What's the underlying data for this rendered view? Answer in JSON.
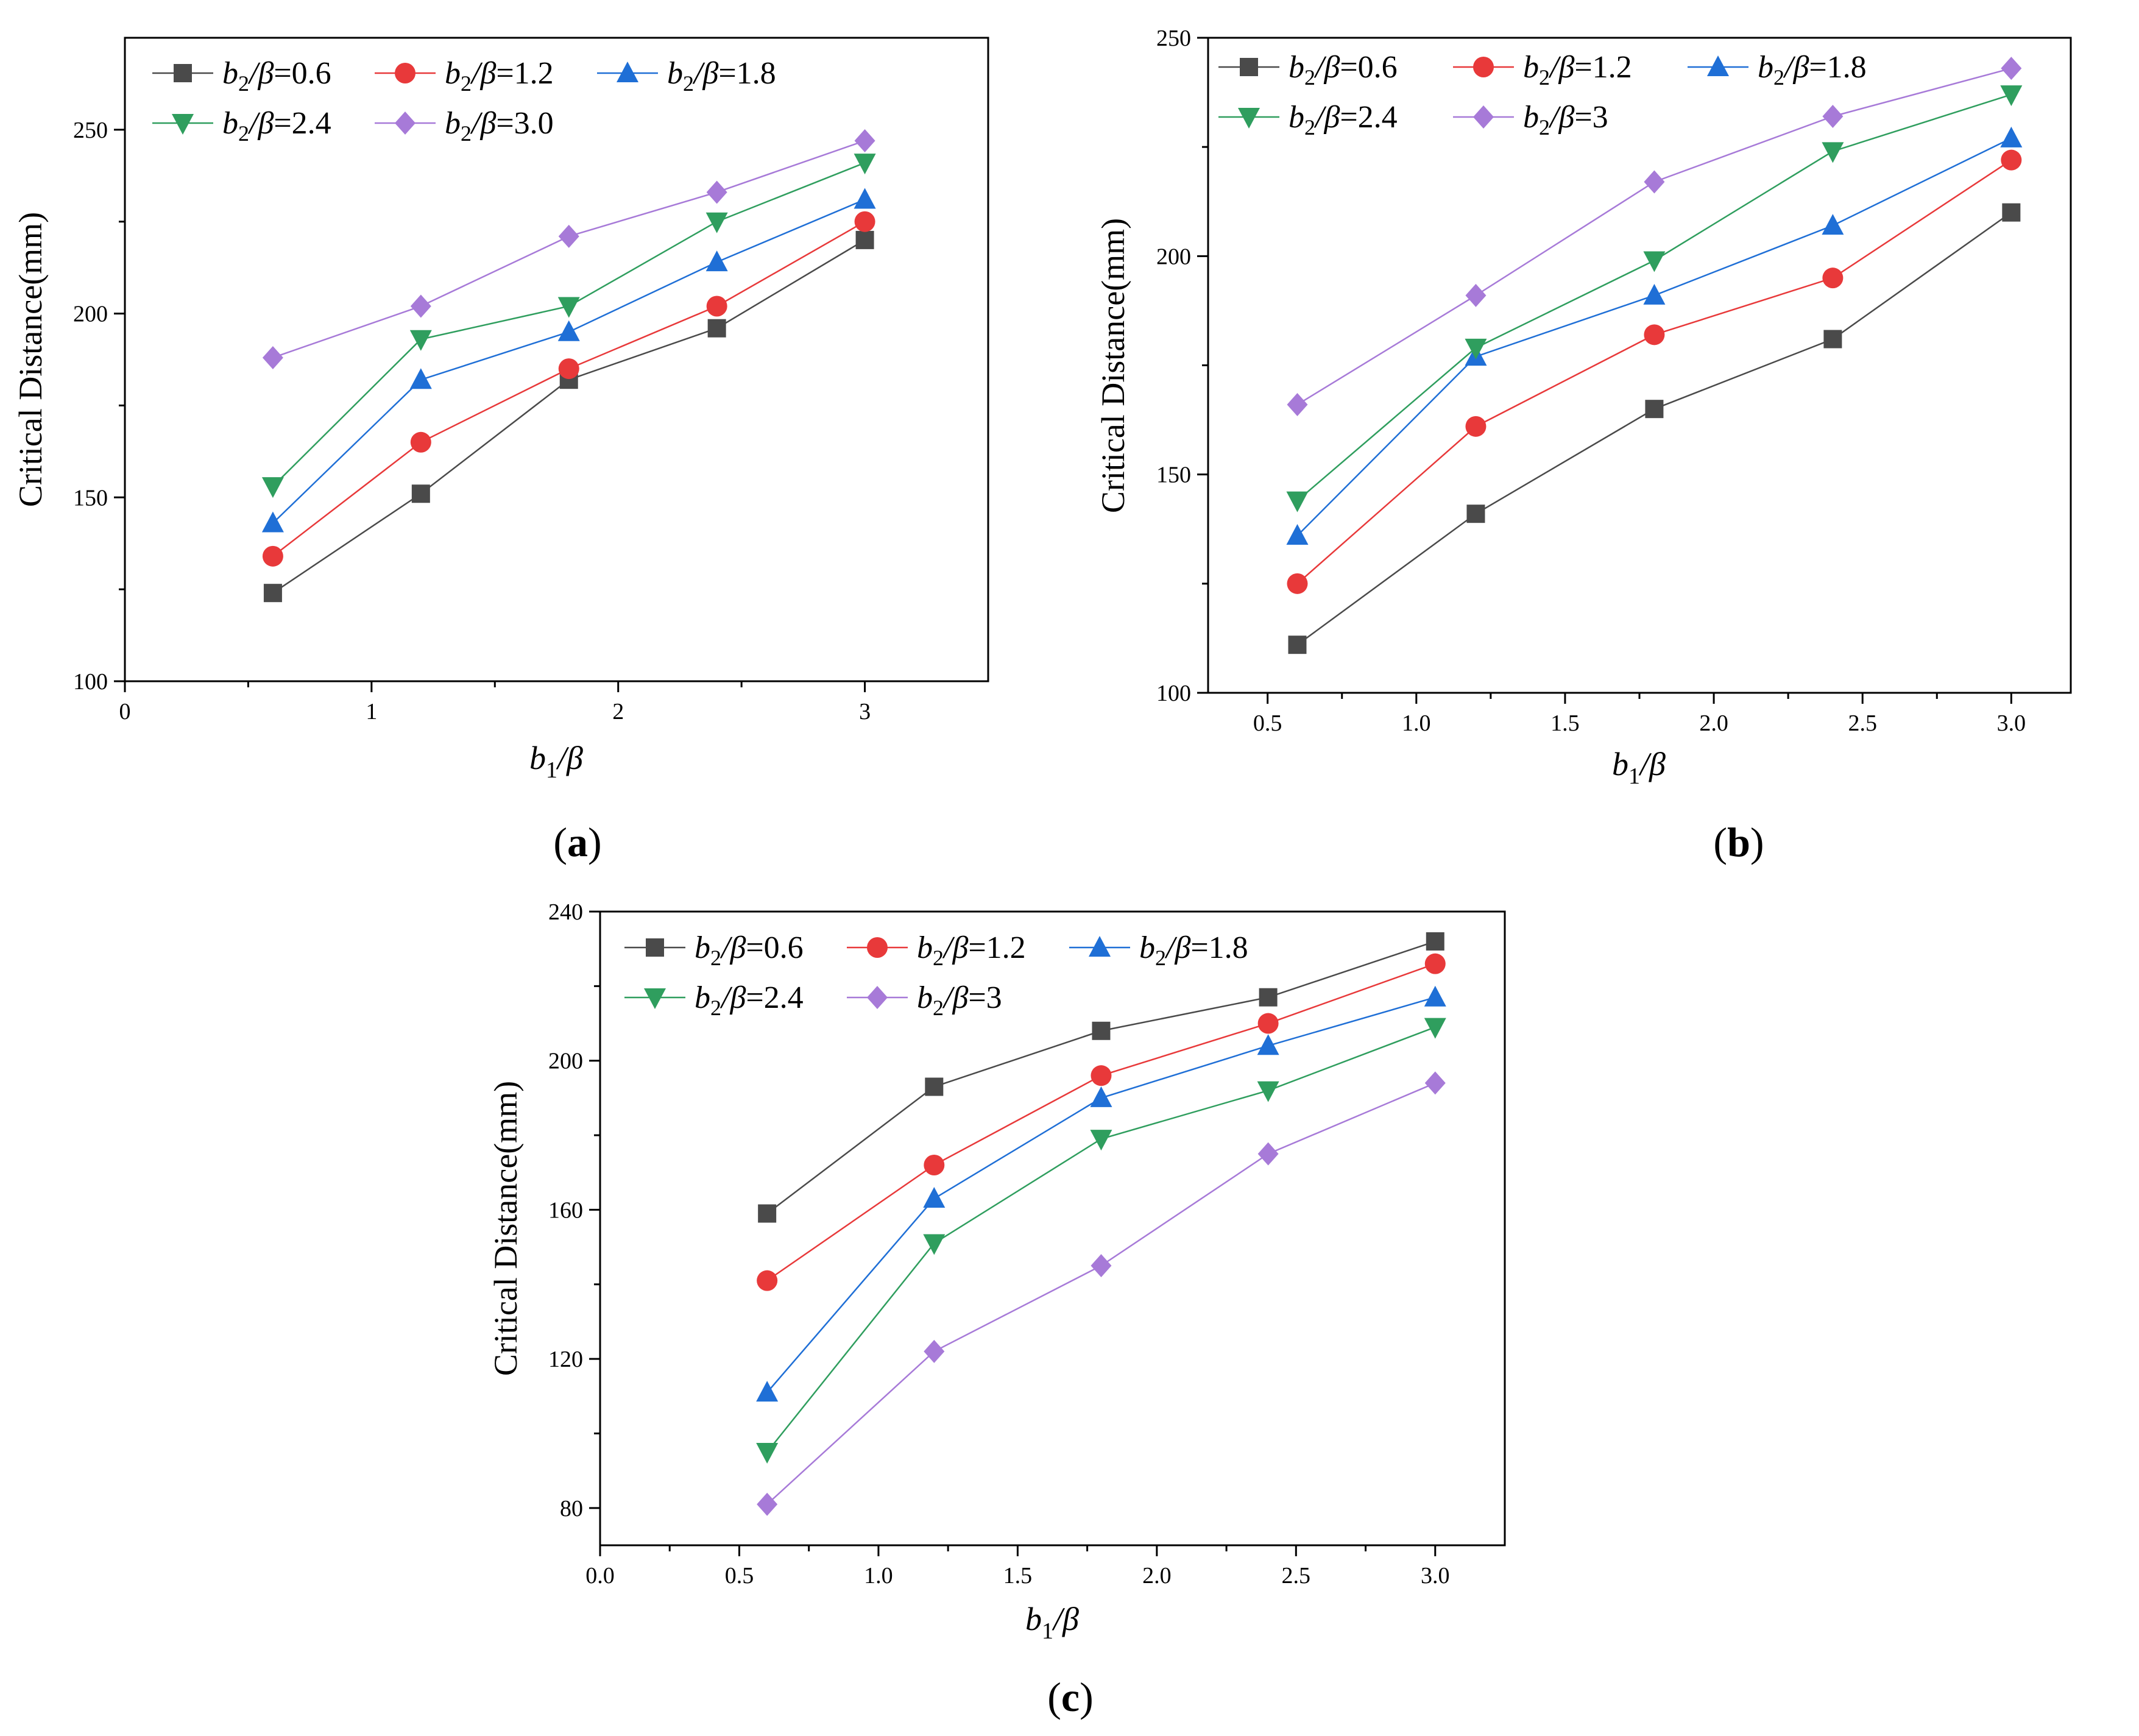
{
  "chart_data": [
    {
      "type": "line",
      "panel_label": "a",
      "xlabel_base": "b",
      "xlabel_sub": "1",
      "xlabel_rest": "/β",
      "ylabel": "Critical Distance(mm)",
      "xlim": [
        0,
        3.5
      ],
      "ylim": [
        100,
        275
      ],
      "xticks": [
        0,
        1,
        2,
        3
      ],
      "xtick_labels": [
        "0",
        "1",
        "2",
        "3"
      ],
      "xminor": [
        0.5,
        1.5,
        2.5
      ],
      "yticks": [
        100,
        150,
        200,
        250
      ],
      "ytick_labels": [
        "100",
        "150",
        "200",
        "250"
      ],
      "yminor": [
        125,
        175,
        225
      ],
      "x": [
        0.6,
        1.2,
        1.8,
        2.4,
        3.0
      ],
      "legend_position": "top-left",
      "series": [
        {
          "name": "b2/β=0.6",
          "label_value": "=0.6",
          "color": "#4a4a4a",
          "marker": "square",
          "values": [
            124,
            151,
            182,
            196,
            220
          ]
        },
        {
          "name": "b2/β=1.2",
          "label_value": "=1.2",
          "color": "#e8393a",
          "marker": "circle",
          "values": [
            134,
            165,
            185,
            202,
            225
          ]
        },
        {
          "name": "b2/β=1.8",
          "label_value": "=1.8",
          "color": "#1f6fd6",
          "marker": "triangle-up",
          "values": [
            143,
            182,
            195,
            214,
            231
          ]
        },
        {
          "name": "b2/β=2.4",
          "label_value": "=2.4",
          "color": "#2f9e5e",
          "marker": "triangle-down",
          "values": [
            153,
            193,
            202,
            225,
            241
          ]
        },
        {
          "name": "b2/β=3.0",
          "label_value": "=3.0",
          "color": "#a77ad8",
          "marker": "diamond",
          "values": [
            188,
            202,
            221,
            233,
            247
          ]
        }
      ]
    },
    {
      "type": "line",
      "panel_label": "b",
      "xlabel_base": "b",
      "xlabel_sub": "1",
      "xlabel_rest": "/β",
      "ylabel": "Critical Distance(mm)",
      "xlim": [
        0.3,
        3.2
      ],
      "ylim": [
        100,
        250
      ],
      "xticks": [
        0.5,
        1.0,
        1.5,
        2.0,
        2.5,
        3.0
      ],
      "xtick_labels": [
        "0.5",
        "1.0",
        "1.5",
        "2.0",
        "2.5",
        "3.0"
      ],
      "xminor": [
        0.75,
        1.25,
        1.75,
        2.25,
        2.75
      ],
      "yticks": [
        100,
        150,
        200,
        250
      ],
      "ytick_labels": [
        "100",
        "150",
        "200",
        "250"
      ],
      "yminor": [
        125,
        175,
        225
      ],
      "x": [
        0.6,
        1.2,
        1.8,
        2.4,
        3.0
      ],
      "legend_position": "top-left",
      "series": [
        {
          "name": "b2/β=0.6",
          "label_value": "=0.6",
          "color": "#4a4a4a",
          "marker": "square",
          "values": [
            111,
            141,
            165,
            181,
            210
          ]
        },
        {
          "name": "b2/β=1.2",
          "label_value": "=1.2",
          "color": "#e8393a",
          "marker": "circle",
          "values": [
            125,
            161,
            182,
            195,
            222
          ]
        },
        {
          "name": "b2/β=1.8",
          "label_value": "=1.8",
          "color": "#1f6fd6",
          "marker": "triangle-up",
          "values": [
            136,
            177,
            191,
            207,
            227
          ]
        },
        {
          "name": "b2/β=2.4",
          "label_value": "=2.4",
          "color": "#2f9e5e",
          "marker": "triangle-down",
          "values": [
            144,
            179,
            199,
            224,
            237
          ]
        },
        {
          "name": "b2/β=3",
          "label_value": "=3",
          "color": "#a77ad8",
          "marker": "diamond",
          "values": [
            166,
            191,
            217,
            232,
            243
          ]
        }
      ]
    },
    {
      "type": "line",
      "panel_label": "c",
      "xlabel_base": "b",
      "xlabel_sub": "1",
      "xlabel_rest": "/β",
      "ylabel": "Critical Distance(mm)",
      "xlim": [
        0,
        3.25
      ],
      "ylim": [
        70,
        240
      ],
      "xticks": [
        0.0,
        0.5,
        1.0,
        1.5,
        2.0,
        2.5,
        3.0
      ],
      "xtick_labels": [
        "0.0",
        "0.5",
        "1.0",
        "1.5",
        "2.0",
        "2.5",
        "3.0"
      ],
      "xminor": [
        0.25,
        0.75,
        1.25,
        1.75,
        2.25,
        2.75
      ],
      "yticks": [
        80,
        120,
        160,
        200,
        240
      ],
      "ytick_labels": [
        "80",
        "120",
        "160",
        "200",
        "240"
      ],
      "yminor": [
        100,
        140,
        180,
        220
      ],
      "x": [
        0.6,
        1.2,
        1.8,
        2.4,
        3.0
      ],
      "legend_position": "top-left",
      "series": [
        {
          "name": "b2/β=0.6",
          "label_value": "=0.6",
          "color": "#4a4a4a",
          "marker": "square",
          "values": [
            159,
            193,
            208,
            217,
            232
          ]
        },
        {
          "name": "b2/β=1.2",
          "label_value": "=1.2",
          "color": "#e8393a",
          "marker": "circle",
          "values": [
            141,
            172,
            196,
            210,
            226
          ]
        },
        {
          "name": "b2/β=1.8",
          "label_value": "=1.8",
          "color": "#1f6fd6",
          "marker": "triangle-up",
          "values": [
            111,
            163,
            190,
            204,
            217
          ]
        },
        {
          "name": "b2/β=2.4",
          "label_value": "=2.4",
          "color": "#2f9e5e",
          "marker": "triangle-down",
          "values": [
            95,
            151,
            179,
            192,
            209
          ]
        },
        {
          "name": "b2/β=3",
          "label_value": "=3",
          "color": "#a77ad8",
          "marker": "diamond",
          "values": [
            81,
            122,
            145,
            175,
            194
          ]
        }
      ]
    }
  ]
}
